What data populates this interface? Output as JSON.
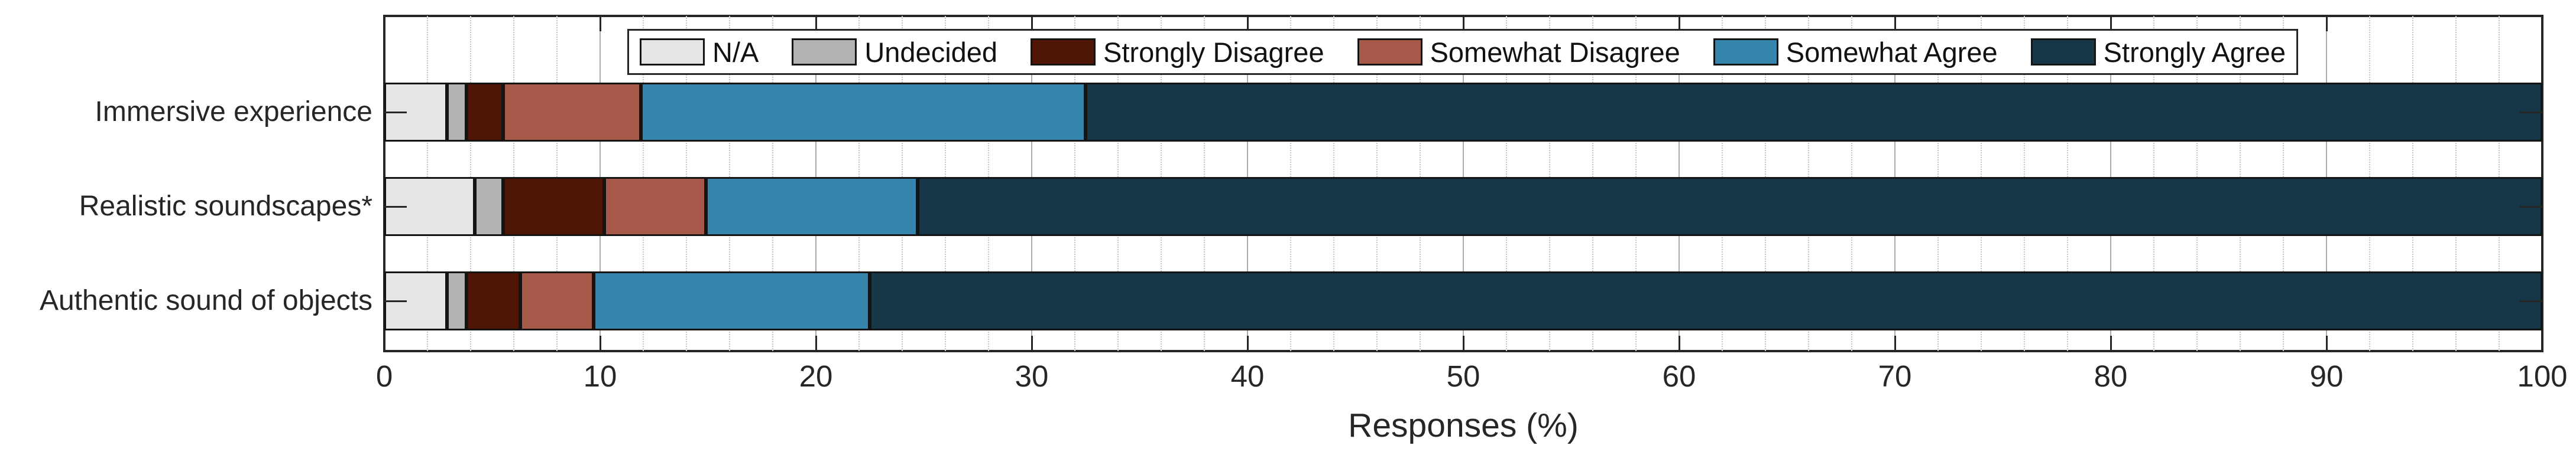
{
  "figure": {
    "background": "#ffffff",
    "frame_color": "#262626"
  },
  "chart_data": {
    "type": "bar",
    "subtype": "horizontal-stacked",
    "title": "",
    "xlabel": "Responses (%)",
    "ylabel": "",
    "categories": [
      "Immersive experience",
      "Realistic soundscapes*",
      "Authentic sound of objects"
    ],
    "series": [
      {
        "name": "N/A",
        "color": "#e6e6e6",
        "values": [
          2.9,
          4.2,
          2.9
        ]
      },
      {
        "name": "Undecided",
        "color": "#b2b2b2",
        "values": [
          0.9,
          1.3,
          0.9
        ]
      },
      {
        "name": "Strongly Disagree",
        "color": "#4f1605",
        "values": [
          1.7,
          4.7,
          2.5
        ]
      },
      {
        "name": "Somewhat Disagree",
        "color": "#a65849",
        "values": [
          6.4,
          4.7,
          3.4
        ]
      },
      {
        "name": "Somewhat Agree",
        "color": "#3585ac",
        "values": [
          20.6,
          9.8,
          12.8
        ]
      },
      {
        "name": "Strongly Agree",
        "color": "#173647",
        "values": [
          67.5,
          75.3,
          77.5
        ]
      }
    ],
    "xlim": [
      0,
      100
    ],
    "xticks": [
      0,
      10,
      20,
      30,
      40,
      50,
      60,
      70,
      80,
      90,
      100
    ],
    "minor_tick_step": 2,
    "grid": "vertical major solid + minor dotted",
    "legend_position": "top-center-inside",
    "legend_labels": [
      "N/A",
      "Undecided",
      "Strongly Disagree",
      "Somewhat Disagree",
      "Somewhat Agree",
      "Strongly Agree"
    ]
  }
}
